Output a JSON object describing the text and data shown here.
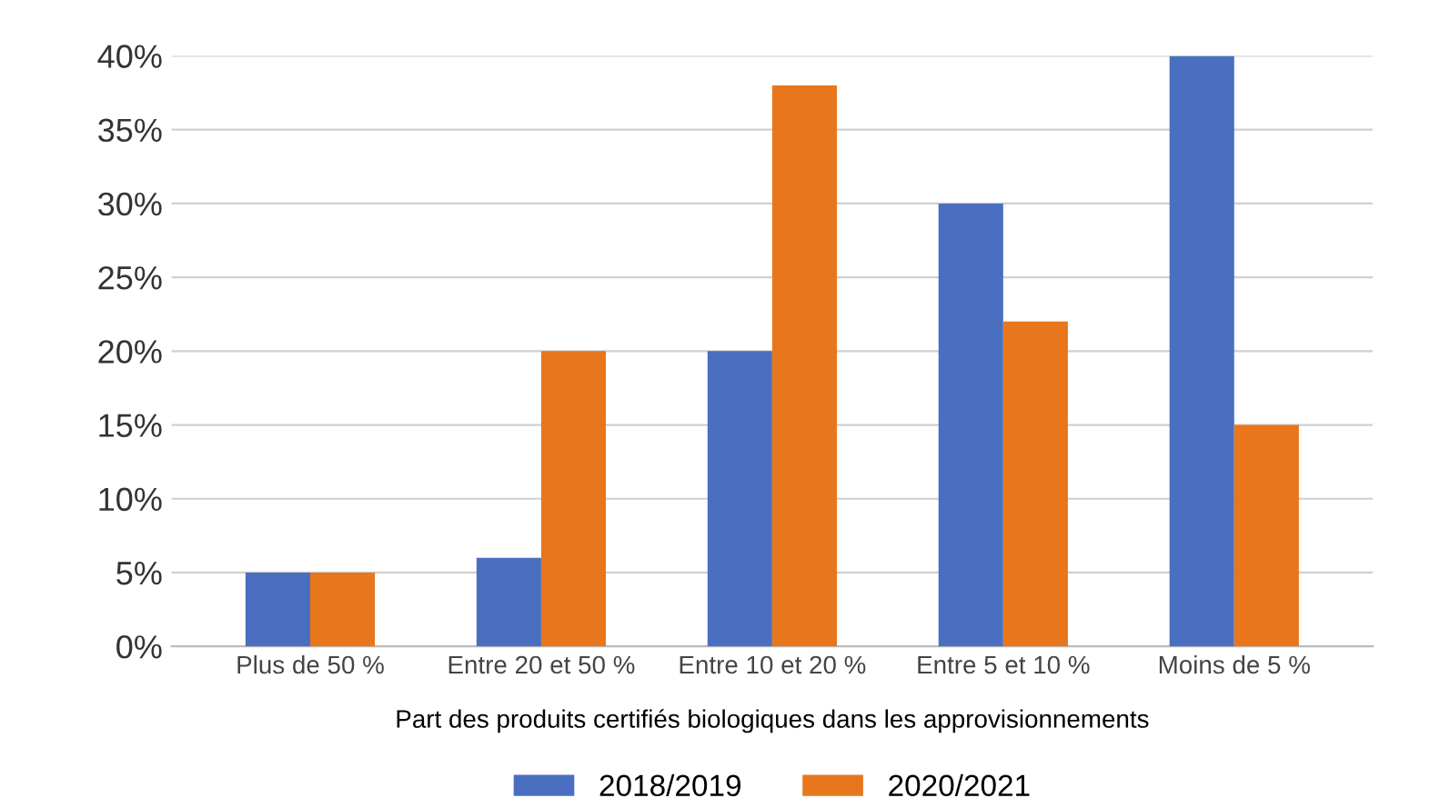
{
  "chart_data": {
    "type": "bar",
    "categories": [
      "Plus de 50 %",
      "Entre 20 et 50 %",
      "Entre 10 et 20 %",
      "Entre 5 et 10 %",
      "Moins de 5 %"
    ],
    "series": [
      {
        "name": "2018/2019",
        "color": "#4a6fc0",
        "values": [
          5,
          6,
          20,
          30,
          40
        ]
      },
      {
        "name": "2020/2021",
        "color": "#e8761c",
        "values": [
          5,
          20,
          38,
          22,
          15
        ]
      }
    ],
    "xlabel": "Part des produits certifiés biologiques dans les approvisionnements",
    "ylim": [
      0,
      40
    ],
    "yticks": [
      {
        "value": 0,
        "label": "0%"
      },
      {
        "value": 5,
        "label": "5%"
      },
      {
        "value": 10,
        "label": "10%"
      },
      {
        "value": 15,
        "label": "15%"
      },
      {
        "value": 20,
        "label": "20%"
      },
      {
        "value": 25,
        "label": "25%"
      },
      {
        "value": 30,
        "label": "30%"
      },
      {
        "value": 35,
        "label": "35%"
      },
      {
        "value": 40,
        "label": "40%"
      }
    ],
    "grid": "y",
    "legend": "bottom"
  }
}
